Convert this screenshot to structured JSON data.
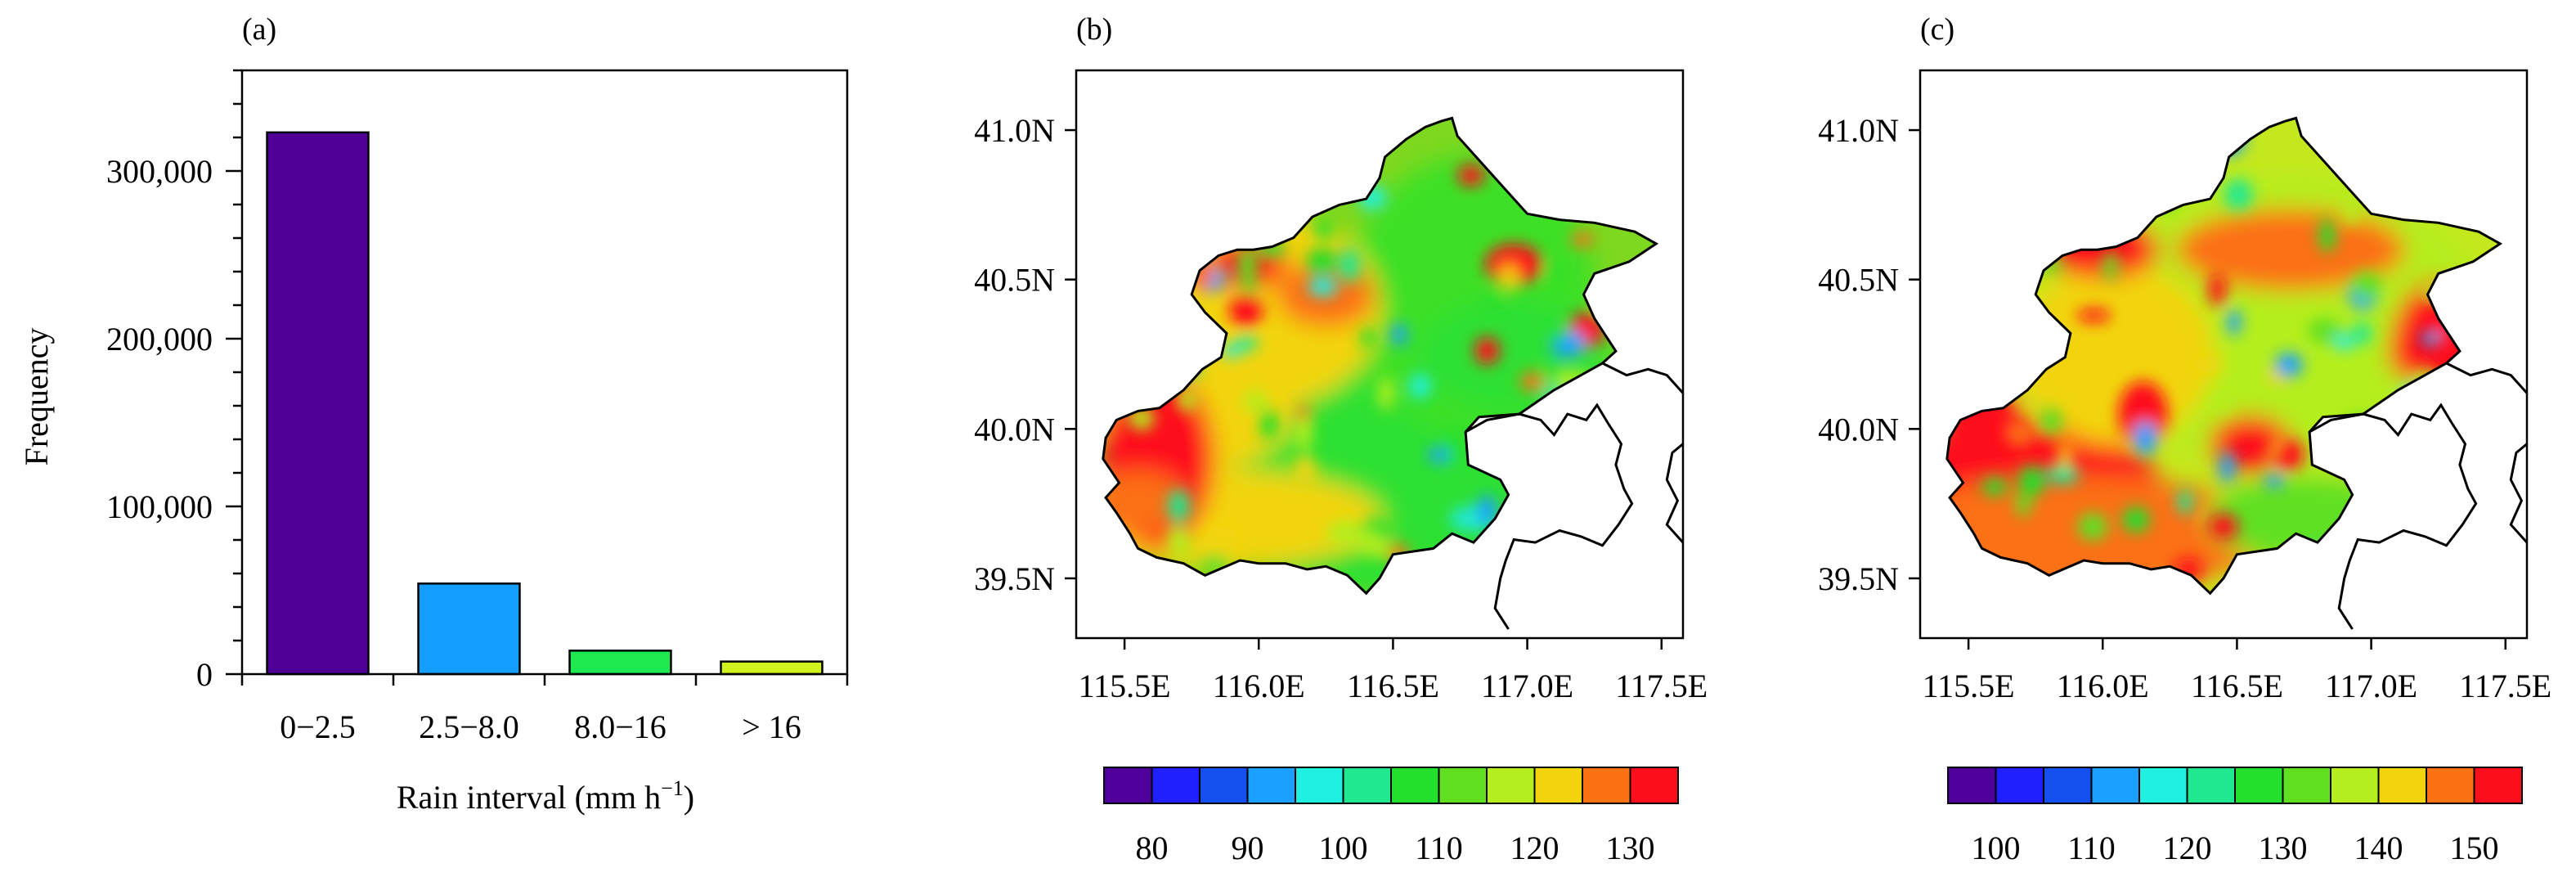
{
  "panels": [
    {
      "label": "(a)"
    },
    {
      "label": "(b)"
    },
    {
      "label": "(c)"
    }
  ],
  "colors": {
    "frame": "#000000",
    "land_outline": "#000000"
  },
  "chart_data": [
    {
      "type": "bar",
      "panel": "(a)",
      "categories": [
        "0−2.5",
        "2.5−8.0",
        "8.0−16",
        "> 16"
      ],
      "values": [
        323000,
        54000,
        14000,
        7500
      ],
      "bar_colors": [
        "#4f0097",
        "#149eff",
        "#1fe951",
        "#d2f21e"
      ],
      "xlabel": "Rain interval (mm h",
      "xlabel_superscript": "−1",
      "xlabel_suffix": ")",
      "ylabel": "Frequency",
      "ylim": [
        0,
        360000
      ],
      "yticks": [
        0,
        100000,
        200000,
        300000
      ],
      "ytick_labels": [
        "0",
        "100,000",
        "200,000",
        "300,000"
      ],
      "minor_ytick_step": 20000,
      "grid": false,
      "legend": "none"
    },
    {
      "type": "heatmap",
      "panel": "(b)",
      "region": "Beijing",
      "xlim": [
        115.32,
        117.58
      ],
      "ylim": [
        39.3,
        41.2
      ],
      "xticks": [
        115.5,
        116.0,
        116.5,
        117.0,
        117.5
      ],
      "xtick_labels": [
        "115.5E",
        "116.0E",
        "116.5E",
        "117.0E",
        "117.5E"
      ],
      "yticks": [
        39.5,
        40.0,
        40.5,
        41.0
      ],
      "ytick_labels": [
        "39.5N",
        "40.0N",
        "40.5N",
        "41.0N"
      ],
      "colorbar": {
        "colors": [
          "#50009a",
          "#2020ff",
          "#1450f0",
          "#1ca0ff",
          "#20f0e0",
          "#20e890",
          "#22e02c",
          "#60e020",
          "#b4ee1e",
          "#f2d40e",
          "#fc7014",
          "#fe0d1a"
        ],
        "tick_labels": [
          "80",
          "90",
          "100",
          "110",
          "120",
          "130"
        ]
      }
    },
    {
      "type": "heatmap",
      "panel": "(c)",
      "region": "Beijing",
      "xlim": [
        115.32,
        117.58
      ],
      "ylim": [
        39.3,
        41.2
      ],
      "xticks": [
        115.5,
        116.0,
        116.5,
        117.0,
        117.5
      ],
      "xtick_labels": [
        "115.5E",
        "116.0E",
        "116.5E",
        "117.0E",
        "117.5E"
      ],
      "yticks": [
        39.5,
        40.0,
        40.5,
        41.0
      ],
      "ytick_labels": [
        "39.5N",
        "40.0N",
        "40.5N",
        "41.0N"
      ],
      "colorbar": {
        "colors": [
          "#50009a",
          "#2020ff",
          "#1450f0",
          "#1ca0ff",
          "#20f0e0",
          "#20e890",
          "#22e02c",
          "#60e020",
          "#b4ee1e",
          "#f2d40e",
          "#fc7014",
          "#fe0d1a"
        ],
        "tick_labels": [
          "100",
          "110",
          "120",
          "130",
          "140",
          "150"
        ]
      }
    }
  ]
}
